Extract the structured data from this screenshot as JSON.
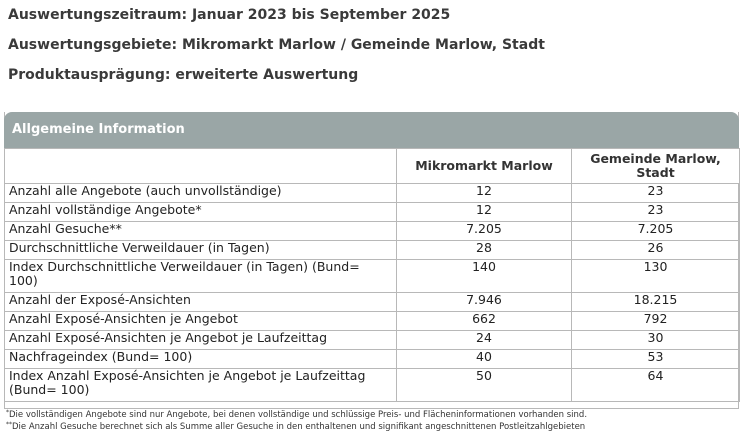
{
  "header": {
    "period": "Auswertungszeitraum: Januar 2023 bis September 2025",
    "regions": "Auswertungsgebiete: Mikromarkt Marlow / Gemeinde Marlow, Stadt",
    "product": "Produktausprägung: erweiterte Auswertung"
  },
  "panel": {
    "title": "Allgemeine Information",
    "columns": [
      "",
      "Mikromarkt Marlow",
      "Gemeinde Marlow, Stadt"
    ],
    "rows": [
      {
        "label": "Anzahl alle Angebote (auch unvollständige)",
        "a": "12",
        "b": "23"
      },
      {
        "label": "Anzahl vollständige Angebote*",
        "a": "12",
        "b": "23"
      },
      {
        "label": "Anzahl Gesuche**",
        "a": "7.205",
        "b": "7.205"
      },
      {
        "label": "Durchschnittliche Verweildauer (in Tagen)",
        "a": "28",
        "b": "26"
      },
      {
        "label": "Index Durchschnittliche Verweildauer (in Tagen) (Bund= 100)",
        "a": "140",
        "b": "130"
      },
      {
        "label": "Anzahl der Exposé-Ansichten",
        "a": "7.946",
        "b": "18.215"
      },
      {
        "label": "Anzahl Exposé-Ansichten je Angebot",
        "a": "662",
        "b": "792"
      },
      {
        "label": "Anzahl Exposé-Ansichten je Angebot je Laufzeittag",
        "a": "24",
        "b": "30"
      },
      {
        "label": "Nachfrageindex (Bund= 100)",
        "a": "40",
        "b": "53"
      },
      {
        "label": "Index Anzahl Exposé-Ansichten je Angebot je Laufzeittag (Bund= 100)",
        "a": "50",
        "b": "64"
      }
    ]
  },
  "footnotes": {
    "note1_marker": "*",
    "note1": "Die vollständigen Angebote sind nur Angebote, bei denen vollständige und schlüssige Preis- und Flächeninformationen vorhanden sind.",
    "note2_marker": "**",
    "note2": "Die Anzahl Gesuche berechnet sich als Summe aller Gesuche in den enthaltenen und signifikant angeschnittenen Postleitzahlgebieten"
  }
}
